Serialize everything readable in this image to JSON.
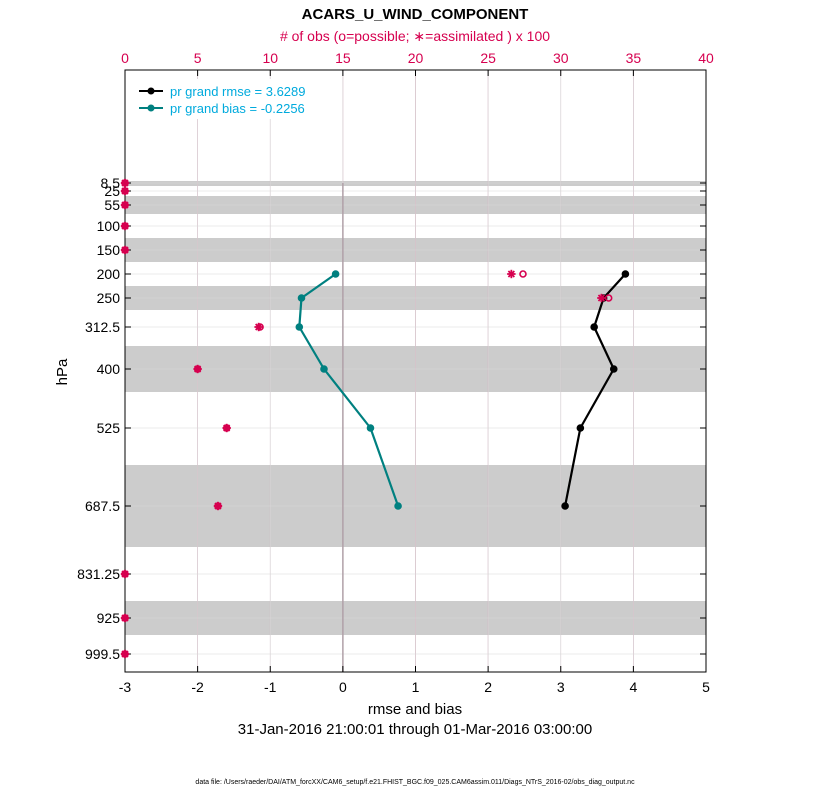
{
  "chart_data": {
    "type": "line",
    "title": "ACARS_U_WIND_COMPONENT",
    "top_axis_label": "# of obs (o=possible; ∗=assimilated ) x 100",
    "xlabel": "rmse and bias",
    "ylabel": "hPa",
    "date_range": "31-Jan-2016 21:00:01 through 01-Mar-2016 03:00:00",
    "footnote": "data file: /Users/raeder/DAI/ATM_forcXX/CAM6_setup/f.e21.FHIST_BGC.f09_025.CAM6assim.011/Diags_NTrS_2016-02/obs_diag_output.nc",
    "xlim": [
      -3,
      5
    ],
    "xticks": [
      "-3",
      "-2",
      "-1",
      "0",
      "1",
      "2",
      "3",
      "4",
      "5"
    ],
    "top_xlim": [
      0,
      40
    ],
    "top_xticks": [
      "0",
      "5",
      "10",
      "15",
      "20",
      "25",
      "30",
      "35",
      "40"
    ],
    "levels": [
      "8.5",
      "25",
      "55",
      "100",
      "150",
      "200",
      "250",
      "312.5",
      "400",
      "525",
      "687.5",
      "831.25",
      "925",
      "999.5"
    ],
    "legend": [
      "pr grand rmse = 3.6289",
      "pr grand bias = -0.2256"
    ],
    "series": [
      {
        "name": "rmse",
        "color": "#000000",
        "levels": [
          "200",
          "250",
          "312.5",
          "400",
          "525",
          "687.5"
        ],
        "values": [
          3.89,
          3.59,
          3.46,
          3.73,
          3.27,
          3.06
        ]
      },
      {
        "name": "bias",
        "color": "#008080",
        "levels": [
          "200",
          "250",
          "312.5",
          "400",
          "525",
          "687.5"
        ],
        "values": [
          -0.1,
          -0.57,
          -0.6,
          -0.26,
          0.38,
          0.76
        ]
      }
    ],
    "obs_count": {
      "color": "#d6004f",
      "levels": [
        "8.5",
        "25",
        "55",
        "100",
        "150",
        "200",
        "250",
        "312.5",
        "400",
        "525",
        "687.5",
        "831.25",
        "925",
        "999.5"
      ],
      "possible": [
        0,
        0,
        0,
        0,
        0,
        27.4,
        33.3,
        9.3,
        5.0,
        7.0,
        6.4,
        0,
        0,
        0
      ],
      "assimilated": [
        0,
        0,
        0,
        0,
        0,
        26.6,
        32.8,
        9.2,
        5.0,
        7.0,
        6.4,
        0,
        0,
        0
      ]
    },
    "shaded_bands": [
      [
        "7",
        "10"
      ],
      [
        "40",
        "70"
      ],
      [
        "125",
        "175"
      ],
      [
        "225",
        "275"
      ],
      [
        "350",
        "450"
      ],
      [
        "600",
        "775"
      ],
      [
        "887.5",
        "962.5"
      ]
    ],
    "grid": true
  },
  "colors": {
    "top_axis": "#d6004f",
    "legend_text": "#00aadd",
    "band": "#cccccc",
    "grid_top": "#d08ca8",
    "grid_bottom": "#d8d8d8"
  }
}
